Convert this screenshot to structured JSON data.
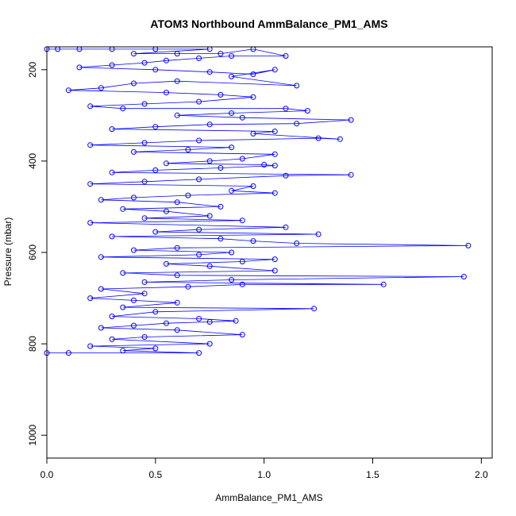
{
  "chart_data": {
    "type": "scatter",
    "title": "ATOM3 Northbound AmmBalance_PM1_AMS",
    "xlabel": "AmmBalance_PM1_AMS",
    "ylabel": "Pressure (mbar)",
    "xlim": [
      0.0,
      2.05
    ],
    "ylim": [
      1050,
      150
    ],
    "y_reversed": true,
    "x_ticks": [
      0.0,
      0.5,
      1.0,
      1.5,
      2.0
    ],
    "x_tick_labels": [
      "0.0",
      "0.5",
      "1.0",
      "1.5",
      "2.0"
    ],
    "y_ticks": [
      200,
      400,
      600,
      800,
      1000
    ],
    "y_tick_labels": [
      "200",
      "400",
      "600",
      "800",
      "1000"
    ],
    "grid": false,
    "series_color": "#0000ff",
    "marker": "open-circle",
    "connected_lines": true,
    "x_step": 0.05,
    "y_step": 5,
    "points": [
      [
        0.0,
        155
      ],
      [
        0.05,
        155
      ],
      [
        0.15,
        155
      ],
      [
        0.3,
        155
      ],
      [
        0.5,
        155
      ],
      [
        0.75,
        155
      ],
      [
        0.4,
        165
      ],
      [
        0.6,
        165
      ],
      [
        0.8,
        165
      ],
      [
        0.95,
        155
      ],
      [
        1.1,
        170
      ],
      [
        0.85,
        170
      ],
      [
        0.7,
        175
      ],
      [
        0.55,
        180
      ],
      [
        0.45,
        185
      ],
      [
        0.3,
        190
      ],
      [
        0.15,
        195
      ],
      [
        0.5,
        200
      ],
      [
        0.75,
        205
      ],
      [
        0.95,
        210
      ],
      [
        1.05,
        200
      ],
      [
        0.85,
        215
      ],
      [
        1.15,
        235
      ],
      [
        0.6,
        225
      ],
      [
        0.4,
        230
      ],
      [
        0.25,
        240
      ],
      [
        0.1,
        245
      ],
      [
        0.55,
        250
      ],
      [
        0.8,
        255
      ],
      [
        0.95,
        260
      ],
      [
        0.7,
        270
      ],
      [
        0.45,
        275
      ],
      [
        0.2,
        280
      ],
      [
        0.35,
        285
      ],
      [
        1.1,
        285
      ],
      [
        1.2,
        290
      ],
      [
        0.85,
        295
      ],
      [
        0.6,
        300
      ],
      [
        0.9,
        305
      ],
      [
        1.4,
        310
      ],
      [
        1.15,
        318
      ],
      [
        0.75,
        320
      ],
      [
        0.5,
        325
      ],
      [
        0.3,
        330
      ],
      [
        1.05,
        335
      ],
      [
        0.95,
        340
      ],
      [
        1.35,
        352
      ],
      [
        1.25,
        350
      ],
      [
        0.7,
        355
      ],
      [
        0.45,
        360
      ],
      [
        0.2,
        365
      ],
      [
        0.85,
        370
      ],
      [
        0.65,
        375
      ],
      [
        0.4,
        380
      ],
      [
        1.05,
        385
      ],
      [
        0.9,
        395
      ],
      [
        0.75,
        400
      ],
      [
        0.55,
        405
      ],
      [
        1.0,
        408
      ],
      [
        1.05,
        410
      ],
      [
        0.8,
        415
      ],
      [
        0.5,
        420
      ],
      [
        0.3,
        425
      ],
      [
        1.4,
        430
      ],
      [
        1.1,
        432
      ],
      [
        0.7,
        440
      ],
      [
        0.45,
        445
      ],
      [
        0.2,
        450
      ],
      [
        0.95,
        455
      ],
      [
        0.85,
        465
      ],
      [
        1.05,
        470
      ],
      [
        0.65,
        475
      ],
      [
        0.4,
        480
      ],
      [
        0.25,
        485
      ],
      [
        0.6,
        490
      ],
      [
        0.8,
        500
      ],
      [
        0.35,
        505
      ],
      [
        0.55,
        510
      ],
      [
        0.75,
        520
      ],
      [
        0.45,
        525
      ],
      [
        0.9,
        530
      ],
      [
        0.2,
        535
      ],
      [
        1.1,
        545
      ],
      [
        0.7,
        550
      ],
      [
        0.5,
        555
      ],
      [
        1.25,
        560
      ],
      [
        0.3,
        565
      ],
      [
        0.8,
        570
      ],
      [
        0.95,
        575
      ],
      [
        1.15,
        580
      ],
      [
        1.94,
        585
      ],
      [
        0.6,
        590
      ],
      [
        0.4,
        595
      ],
      [
        0.85,
        600
      ],
      [
        0.7,
        605
      ],
      [
        0.25,
        610
      ],
      [
        1.05,
        615
      ],
      [
        0.9,
        620
      ],
      [
        0.55,
        625
      ],
      [
        0.75,
        630
      ],
      [
        1.05,
        640
      ],
      [
        0.35,
        645
      ],
      [
        0.6,
        650
      ],
      [
        1.92,
        653
      ],
      [
        0.85,
        660
      ],
      [
        0.45,
        665
      ],
      [
        1.55,
        670
      ],
      [
        0.9,
        670
      ],
      [
        0.65,
        675
      ],
      [
        0.25,
        680
      ],
      [
        0.45,
        690
      ],
      [
        0.2,
        700
      ],
      [
        0.4,
        705
      ],
      [
        0.6,
        710
      ],
      [
        0.35,
        720
      ],
      [
        1.23,
        723
      ],
      [
        0.5,
        730
      ],
      [
        0.3,
        740
      ],
      [
        0.7,
        745
      ],
      [
        0.87,
        750
      ],
      [
        0.75,
        752
      ],
      [
        0.55,
        755
      ],
      [
        0.4,
        760
      ],
      [
        0.25,
        765
      ],
      [
        0.6,
        770
      ],
      [
        0.9,
        780
      ],
      [
        0.45,
        785
      ],
      [
        0.3,
        790
      ],
      [
        0.75,
        800
      ],
      [
        0.2,
        805
      ],
      [
        0.5,
        810
      ],
      [
        0.35,
        815
      ],
      [
        0.7,
        820
      ],
      [
        0.1,
        820
      ],
      [
        0.0,
        820
      ]
    ]
  }
}
